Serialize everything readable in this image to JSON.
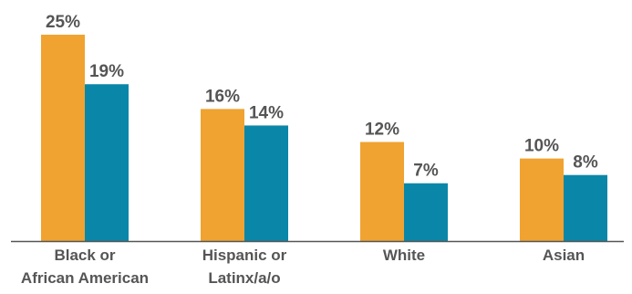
{
  "chart_data": {
    "type": "bar",
    "categories": [
      [
        "Black or",
        "African American"
      ],
      [
        "Hispanic or",
        "Latinx/a/o"
      ],
      [
        "White"
      ],
      [
        "Asian"
      ]
    ],
    "series": [
      {
        "values": [
          25,
          16,
          12,
          10
        ],
        "labels": [
          "25%",
          "16%",
          "12%",
          "10%"
        ],
        "color": "#F0A330"
      },
      {
        "values": [
          19,
          14,
          7,
          8
        ],
        "labels": [
          "19%",
          "14%",
          "7%",
          "8%"
        ],
        "color": "#0A87A8"
      }
    ],
    "title": "",
    "xlabel": "",
    "ylabel": "",
    "ylim": [
      0,
      25
    ],
    "grid": false,
    "legend": "none",
    "axis_color": "#555555"
  }
}
